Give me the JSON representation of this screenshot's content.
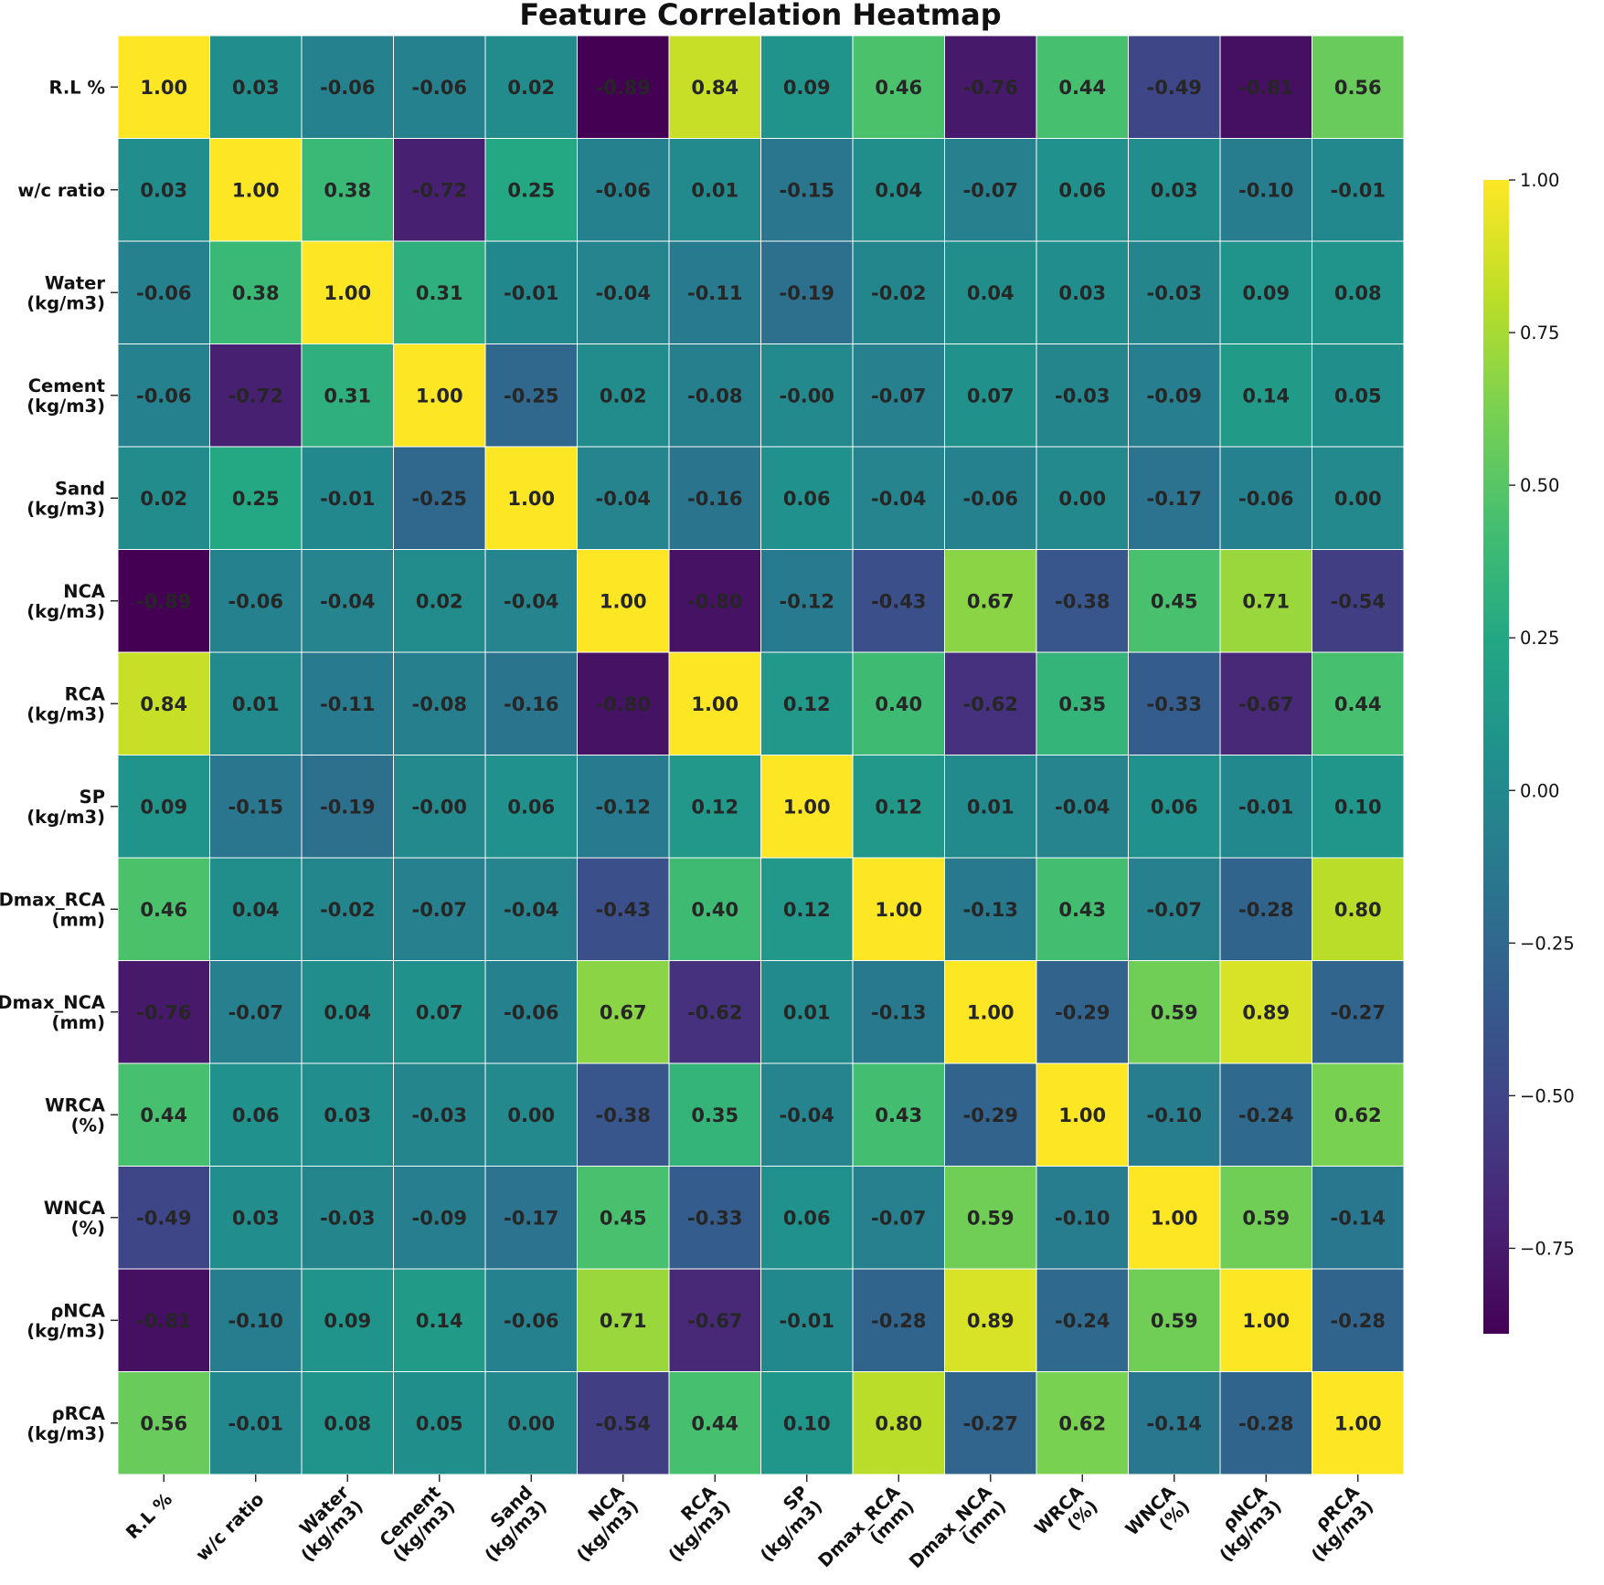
{
  "chart_data": {
    "type": "heatmap",
    "title": "Feature Correlation Heatmap",
    "colormap": "viridis",
    "labels": [
      "R.L %",
      "w/c ratio",
      "Water\n(kg/m3)",
      "Cement\n(kg/m3)",
      "Sand\n(kg/m3)",
      "NCA\n(kg/m3)",
      "RCA\n(kg/m3)",
      "SP\n(kg/m3)",
      "Dmax_RCA\n(mm)",
      "Dmax_NCA\n(mm)",
      "WRCA\n(%)",
      "WNCA\n(%)",
      "ρNCA\n(kg/m3)",
      "ρRCA\n(kg/m3)"
    ],
    "matrix": [
      [
        "1.00",
        "0.03",
        "-0.06",
        "-0.06",
        "0.02",
        "-0.89",
        "0.84",
        "0.09",
        "0.46",
        "-0.76",
        "0.44",
        "-0.49",
        "-0.81",
        "0.56"
      ],
      [
        "0.03",
        "1.00",
        "0.38",
        "-0.72",
        "0.25",
        "-0.06",
        "0.01",
        "-0.15",
        "0.04",
        "-0.07",
        "0.06",
        "0.03",
        "-0.10",
        "-0.01"
      ],
      [
        "-0.06",
        "0.38",
        "1.00",
        "0.31",
        "-0.01",
        "-0.04",
        "-0.11",
        "-0.19",
        "-0.02",
        "0.04",
        "0.03",
        "-0.03",
        "0.09",
        "0.08"
      ],
      [
        "-0.06",
        "-0.72",
        "0.31",
        "1.00",
        "-0.25",
        "0.02",
        "-0.08",
        "-0.00",
        "-0.07",
        "0.07",
        "-0.03",
        "-0.09",
        "0.14",
        "0.05"
      ],
      [
        "0.02",
        "0.25",
        "-0.01",
        "-0.25",
        "1.00",
        "-0.04",
        "-0.16",
        "0.06",
        "-0.04",
        "-0.06",
        "0.00",
        "-0.17",
        "-0.06",
        "0.00"
      ],
      [
        "-0.89",
        "-0.06",
        "-0.04",
        "0.02",
        "-0.04",
        "1.00",
        "-0.80",
        "-0.12",
        "-0.43",
        "0.67",
        "-0.38",
        "0.45",
        "0.71",
        "-0.54"
      ],
      [
        "0.84",
        "0.01",
        "-0.11",
        "-0.08",
        "-0.16",
        "-0.80",
        "1.00",
        "0.12",
        "0.40",
        "-0.62",
        "0.35",
        "-0.33",
        "-0.67",
        "0.44"
      ],
      [
        "0.09",
        "-0.15",
        "-0.19",
        "-0.00",
        "0.06",
        "-0.12",
        "0.12",
        "1.00",
        "0.12",
        "0.01",
        "-0.04",
        "0.06",
        "-0.01",
        "0.10"
      ],
      [
        "0.46",
        "0.04",
        "-0.02",
        "-0.07",
        "-0.04",
        "-0.43",
        "0.40",
        "0.12",
        "1.00",
        "-0.13",
        "0.43",
        "-0.07",
        "-0.28",
        "0.80"
      ],
      [
        "-0.76",
        "-0.07",
        "0.04",
        "0.07",
        "-0.06",
        "0.67",
        "-0.62",
        "0.01",
        "-0.13",
        "1.00",
        "-0.29",
        "0.59",
        "0.89",
        "-0.27"
      ],
      [
        "0.44",
        "0.06",
        "0.03",
        "-0.03",
        "0.00",
        "-0.38",
        "0.35",
        "-0.04",
        "0.43",
        "-0.29",
        "1.00",
        "-0.10",
        "-0.24",
        "0.62"
      ],
      [
        "-0.49",
        "0.03",
        "-0.03",
        "-0.09",
        "-0.17",
        "0.45",
        "-0.33",
        "0.06",
        "-0.07",
        "0.59",
        "-0.10",
        "1.00",
        "0.59",
        "-0.14"
      ],
      [
        "-0.81",
        "-0.10",
        "0.09",
        "0.14",
        "-0.06",
        "0.71",
        "-0.67",
        "-0.01",
        "-0.28",
        "0.89",
        "-0.24",
        "0.59",
        "1.00",
        "-0.28"
      ],
      [
        "0.56",
        "-0.01",
        "0.08",
        "0.05",
        "0.00",
        "-0.54",
        "0.44",
        "0.10",
        "0.80",
        "-0.27",
        "0.62",
        "-0.14",
        "-0.28",
        "1.00"
      ]
    ],
    "vmin": -0.89,
    "vmax": 1.0,
    "colorbar_ticks": [
      "1.00",
      "0.75",
      "0.50",
      "0.25",
      "0.00",
      "−0.25",
      "−0.50",
      "−0.75"
    ]
  }
}
